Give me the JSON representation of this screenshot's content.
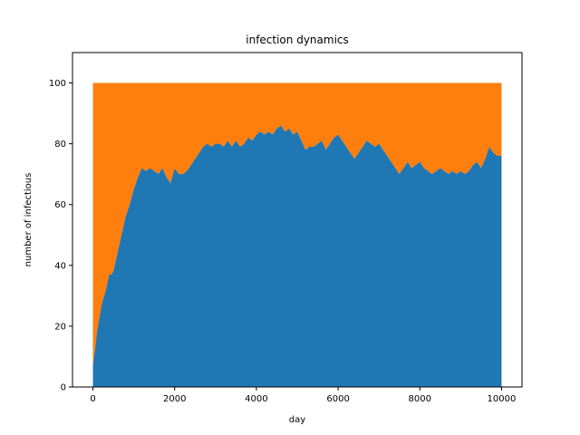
{
  "chart_data": {
    "type": "area",
    "stacked": true,
    "title": "infection dynamics",
    "xlabel": "day",
    "ylabel": "number of infectious",
    "xlim": [
      -500,
      10500
    ],
    "ylim": [
      0,
      110
    ],
    "xticks": [
      0,
      2000,
      4000,
      6000,
      8000,
      10000
    ],
    "yticks": [
      0,
      20,
      40,
      60,
      80,
      100
    ],
    "grid": false,
    "total_population": 100,
    "series": [
      {
        "color": "#1f77b4",
        "x": [
          0,
          50,
          100,
          150,
          200,
          250,
          300,
          350,
          400,
          450,
          500,
          600,
          700,
          800,
          900,
          1000,
          1100,
          1200,
          1300,
          1400,
          1500,
          1600,
          1700,
          1800,
          1900,
          2000,
          2100,
          2200,
          2300,
          2400,
          2500,
          2600,
          2700,
          2800,
          2900,
          3000,
          3100,
          3200,
          3300,
          3400,
          3500,
          3600,
          3700,
          3800,
          3900,
          4000,
          4100,
          4200,
          4300,
          4400,
          4500,
          4600,
          4700,
          4800,
          4900,
          5000,
          5100,
          5200,
          5300,
          5400,
          5500,
          5600,
          5700,
          5800,
          5900,
          6000,
          6100,
          6200,
          6300,
          6400,
          6500,
          6600,
          6700,
          6800,
          6900,
          7000,
          7100,
          7200,
          7300,
          7400,
          7500,
          7600,
          7700,
          7800,
          7900,
          8000,
          8100,
          8200,
          8300,
          8400,
          8500,
          8600,
          8700,
          8800,
          8900,
          9000,
          9100,
          9200,
          9300,
          9400,
          9500,
          9600,
          9700,
          9800,
          9900,
          10000
        ],
        "values": [
          7,
          12,
          18,
          22,
          26,
          29,
          31,
          34,
          37,
          37,
          38,
          44,
          50,
          56,
          60,
          65,
          69,
          72,
          71,
          72,
          71,
          70,
          72,
          69,
          67,
          72,
          70,
          70,
          71,
          73,
          75,
          77,
          79,
          80,
          79,
          80,
          80,
          79,
          81,
          79,
          81,
          79,
          80,
          82,
          81,
          83,
          84,
          83,
          84,
          83,
          85,
          86,
          84,
          85,
          83,
          84,
          81,
          78,
          79,
          79,
          80,
          81,
          78,
          80,
          82,
          83,
          81,
          79,
          77,
          75,
          77,
          79,
          81,
          80,
          79,
          80,
          78,
          76,
          74,
          72,
          70,
          72,
          74,
          72,
          73,
          74,
          72,
          71,
          70,
          71,
          72,
          71,
          70,
          71,
          70,
          71,
          70,
          71,
          73,
          74,
          72,
          75,
          79,
          77,
          76,
          76
        ]
      },
      {
        "color": "#ff7f0e",
        "note_values": "susceptible = total_population - infectious"
      }
    ]
  }
}
